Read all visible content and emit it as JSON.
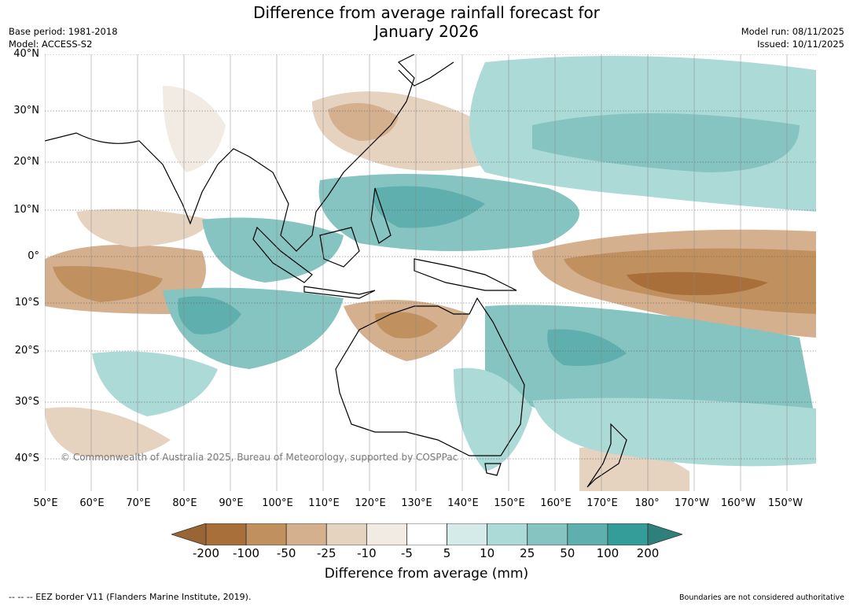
{
  "header": {
    "title_line1": "Difference from average rainfall forecast for",
    "title_line2": "January 2026",
    "base_period": "Base period: 1981-2018",
    "model": "Model: ACCESS-S2",
    "model_run": "Model run: 08/11/2025",
    "issued": "Issued: 10/11/2025"
  },
  "map": {
    "copyright": "© Commonwealth of Australia 2025, Bureau of Meteorology, supported by COSPPac",
    "lat_labels": [
      "40°N",
      "30°N",
      "20°N",
      "10°N",
      "0°",
      "10°S",
      "20°S",
      "30°S",
      "40°S"
    ],
    "lon_labels": [
      "50°E",
      "60°E",
      "70°E",
      "80°E",
      "90°E",
      "100°E",
      "110°E",
      "120°E",
      "130°E",
      "140°E",
      "150°E",
      "160°E",
      "170°E",
      "180°",
      "170°W",
      "160°W",
      "150°W"
    ],
    "extent": {
      "lon_min": 50,
      "lon_max": 217,
      "lat_min": -45,
      "lat_max": 40
    }
  },
  "colorbar": {
    "ticks": [
      "-200",
      "-100",
      "-50",
      "-25",
      "-10",
      "-5",
      "5",
      "10",
      "25",
      "50",
      "100",
      "200"
    ],
    "colors": [
      "#a86f3a",
      "#c0905f",
      "#d4b08e",
      "#e5d2bf",
      "#f2ebe3",
      "#ffffff",
      "#d5ebea",
      "#acdad7",
      "#85c4c1",
      "#5eafad",
      "#349d9a"
    ],
    "low_extend_color": "#9a6535",
    "high_extend_color": "#2f7f7c",
    "label": "Difference from average (mm)"
  },
  "footer": {
    "eez": "--  --  -- EEZ border V11 (Flanders Marine Institute, 2019).",
    "boundaries": "Boundaries are not considered authoritative"
  }
}
